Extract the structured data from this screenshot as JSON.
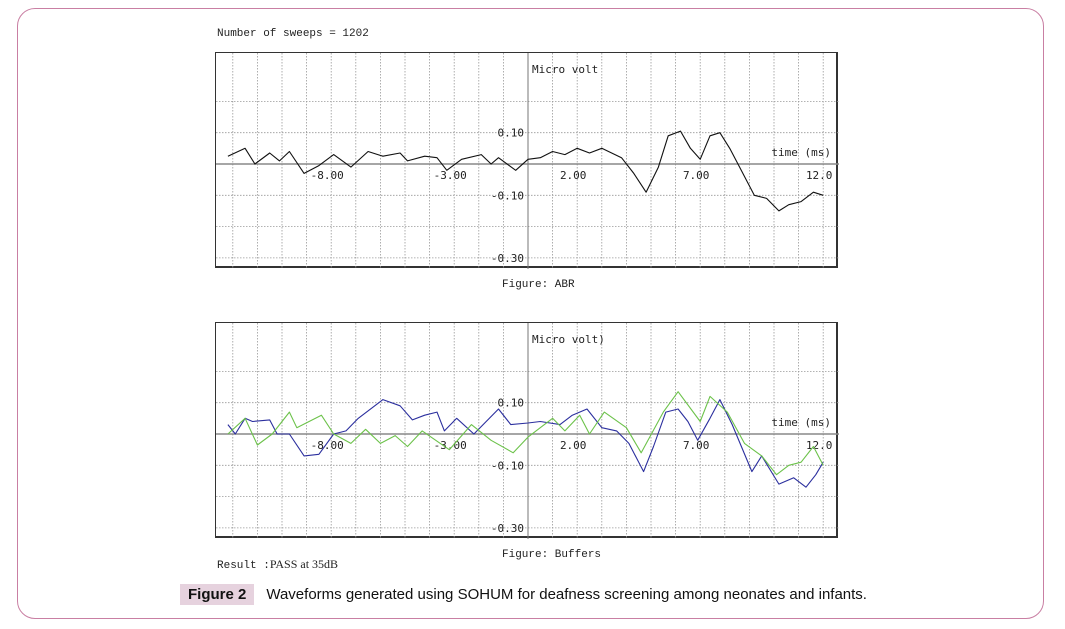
{
  "header": {
    "sweeps_text": "Number of sweeps = 1202"
  },
  "colors": {
    "frame": "#c97fa3",
    "abr": "#111111",
    "buffer_blue": "#2b2f9e",
    "buffer_green": "#6cc24a",
    "caption_tag_bg": "#e6d2de"
  },
  "chart_data": [
    {
      "type": "line",
      "title": "Figure: ABR",
      "ylabel": "Micro volt",
      "xlabel": "time (ms)",
      "xlim": [
        -12.7,
        12.7
      ],
      "ylim": [
        -0.34,
        0.36
      ],
      "grid": true,
      "x_tick_labels": [
        {
          "v": -8,
          "t": "-8.00"
        },
        {
          "v": -3,
          "t": "-3.00"
        },
        {
          "v": 2,
          "t": "2.00"
        },
        {
          "v": 7,
          "t": "7.00"
        },
        {
          "v": 12,
          "t": "12.0"
        }
      ],
      "y_tick_labels": [
        {
          "v": 0.1,
          "t": "0.10"
        },
        {
          "v": -0.1,
          "t": "-0.10"
        },
        {
          "v": -0.3,
          "t": "-0.30"
        }
      ],
      "series": [
        {
          "name": "ABR",
          "color": "#111111",
          "x": [
            -12.2,
            -11.5,
            -11.1,
            -10.5,
            -10.1,
            -9.7,
            -9.1,
            -8.5,
            -7.9,
            -7.2,
            -6.5,
            -5.9,
            -5.2,
            -4.9,
            -4.2,
            -3.7,
            -3.3,
            -2.7,
            -1.9,
            -1.5,
            -1.2,
            -0.5,
            0,
            0.5,
            1.0,
            1.5,
            2.0,
            2.5,
            3.0,
            3.8,
            4.3,
            4.8,
            5.3,
            5.7,
            6.2,
            6.6,
            7.0,
            7.4,
            7.8,
            8.2,
            8.6,
            9.2,
            9.7,
            10.2,
            10.6,
            11.1,
            11.6,
            12.0
          ],
          "y": [
            0.025,
            0.05,
            0.0,
            0.035,
            0.01,
            0.04,
            -0.03,
            -0.005,
            0.03,
            -0.01,
            0.04,
            0.025,
            0.035,
            0.01,
            0.025,
            0.02,
            -0.02,
            0.015,
            0.03,
            0.0,
            0.02,
            -0.02,
            0.015,
            0.02,
            0.04,
            0.03,
            0.05,
            0.035,
            0.05,
            0.02,
            -0.03,
            -0.09,
            -0.01,
            0.09,
            0.105,
            0.05,
            0.015,
            0.09,
            0.1,
            0.05,
            -0.01,
            -0.1,
            -0.11,
            -0.15,
            -0.13,
            -0.12,
            -0.09,
            -0.1
          ]
        }
      ]
    },
    {
      "type": "line",
      "title": "Figure: Buffers",
      "ylabel": "Micro volt)",
      "xlabel": "time (ms)",
      "xlim": [
        -12.7,
        12.7
      ],
      "ylim": [
        -0.34,
        0.36
      ],
      "grid": true,
      "x_tick_labels": [
        {
          "v": -8,
          "t": "-8.00"
        },
        {
          "v": -3,
          "t": "-3.00"
        },
        {
          "v": 2,
          "t": "2.00"
        },
        {
          "v": 7,
          "t": "7.00"
        },
        {
          "v": 12,
          "t": "12.0"
        }
      ],
      "y_tick_labels": [
        {
          "v": 0.1,
          "t": "0.10"
        },
        {
          "v": -0.1,
          "t": "-0.10"
        },
        {
          "v": -0.3,
          "t": "-0.30"
        }
      ],
      "series": [
        {
          "name": "Buffer 1",
          "color": "#2b2f9e",
          "x": [
            -12.2,
            -11.9,
            -11.5,
            -11.2,
            -10.5,
            -10.2,
            -9.7,
            -9.1,
            -8.5,
            -7.9,
            -7.4,
            -6.9,
            -5.9,
            -5.2,
            -4.7,
            -4.2,
            -3.7,
            -3.4,
            -2.9,
            -2.2,
            -1.2,
            -0.7,
            0,
            0.5,
            1.3,
            1.8,
            2.4,
            3.0,
            3.6,
            4.1,
            4.7,
            5.1,
            5.6,
            6.1,
            6.5,
            6.9,
            7.4,
            7.8,
            8.3,
            9.1,
            9.5,
            10.2,
            10.8,
            11.3,
            11.7,
            12.0
          ],
          "y": [
            0.03,
            0.0,
            0.05,
            0.04,
            0.045,
            0.0,
            0.0,
            -0.07,
            -0.065,
            0.0,
            0.01,
            0.05,
            0.11,
            0.09,
            0.045,
            0.06,
            0.07,
            0.01,
            0.05,
            0.0,
            0.08,
            0.03,
            0.035,
            0.04,
            0.03,
            0.06,
            0.08,
            0.02,
            0.01,
            -0.03,
            -0.12,
            -0.04,
            0.07,
            0.08,
            0.04,
            -0.02,
            0.05,
            0.11,
            0.03,
            -0.12,
            -0.07,
            -0.16,
            -0.14,
            -0.17,
            -0.13,
            -0.09
          ]
        },
        {
          "name": "Buffer 2",
          "color": "#6cc24a",
          "x": [
            -12.2,
            -11.5,
            -11.0,
            -10.4,
            -9.7,
            -9.4,
            -8.4,
            -7.9,
            -7.2,
            -6.6,
            -6.0,
            -5.4,
            -4.9,
            -4.3,
            -3.2,
            -2.3,
            -1.5,
            -0.6,
            0,
            1.0,
            1.5,
            2.1,
            2.5,
            3.1,
            4.0,
            4.6,
            5.5,
            6.1,
            7.0,
            7.4,
            8.1,
            8.8,
            9.5,
            10.1,
            10.6,
            11.1,
            11.6,
            12.0
          ],
          "y": [
            0.0,
            0.05,
            -0.035,
            0.0,
            0.07,
            0.02,
            0.06,
            0.0,
            -0.03,
            0.015,
            -0.03,
            -0.005,
            -0.04,
            0.01,
            -0.05,
            0.03,
            -0.02,
            -0.06,
            -0.01,
            0.05,
            0.01,
            0.06,
            0.0,
            0.07,
            0.02,
            -0.06,
            0.07,
            0.135,
            0.04,
            0.12,
            0.07,
            -0.03,
            -0.07,
            -0.13,
            -0.1,
            -0.09,
            -0.04,
            -0.1
          ]
        }
      ]
    }
  ],
  "result": {
    "label": "Result :",
    "value": "PASS at 35dB"
  },
  "caption": {
    "tag": "Figure 2",
    "text": "Waveforms generated using SOHUM for deafness screening among neonates and infants."
  }
}
